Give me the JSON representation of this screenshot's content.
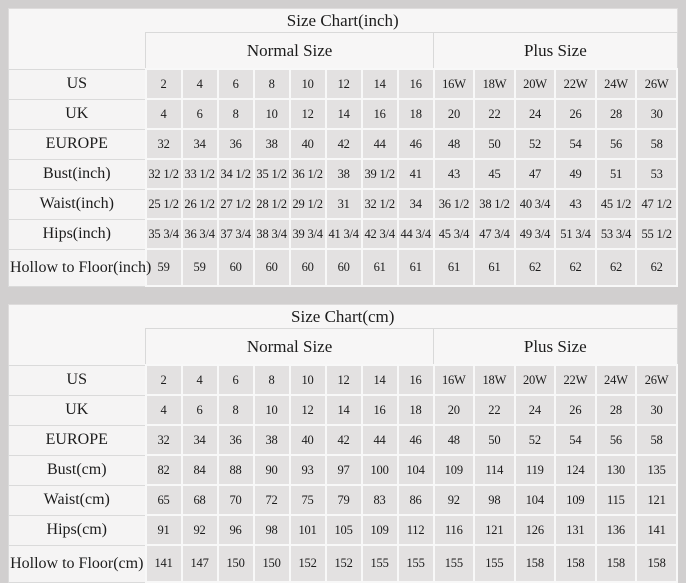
{
  "colors": {
    "page_bg": "#d1cfcf",
    "header_bg": "#f7f6f6",
    "label_cell_bg": "#f5f4f4",
    "data_cell_bg": "#e3e1e1",
    "grid_light": "#f8f8f8",
    "grid_gray": "#d9d9d9",
    "text": "#1c1c1c"
  },
  "tables": [
    {
      "title": "Size Chart(inch)",
      "group_headers": {
        "normal": "Normal Size",
        "plus": "Plus Size"
      },
      "rows": [
        {
          "label": "US",
          "normal": [
            "2",
            "4",
            "6",
            "8",
            "10",
            "12",
            "14",
            "16"
          ],
          "plus": [
            "16W",
            "18W",
            "20W",
            "22W",
            "24W",
            "26W"
          ]
        },
        {
          "label": "UK",
          "normal": [
            "4",
            "6",
            "8",
            "10",
            "12",
            "14",
            "16",
            "18"
          ],
          "plus": [
            "20",
            "22",
            "24",
            "26",
            "28",
            "30"
          ]
        },
        {
          "label": "EUROPE",
          "normal": [
            "32",
            "34",
            "36",
            "38",
            "40",
            "42",
            "44",
            "46"
          ],
          "plus": [
            "48",
            "50",
            "52",
            "54",
            "56",
            "58"
          ]
        },
        {
          "label": "Bust(inch)",
          "normal": [
            "32 1/2",
            "33 1/2",
            "34 1/2",
            "35 1/2",
            "36 1/2",
            "38",
            "39 1/2",
            "41"
          ],
          "plus": [
            "43",
            "45",
            "47",
            "49",
            "51",
            "53"
          ]
        },
        {
          "label": "Waist(inch)",
          "normal": [
            "25 1/2",
            "26 1/2",
            "27 1/2",
            "28 1/2",
            "29 1/2",
            "31",
            "32 1/2",
            "34"
          ],
          "plus": [
            "36 1/2",
            "38 1/2",
            "40 3/4",
            "43",
            "45 1/2",
            "47 1/2"
          ]
        },
        {
          "label": "Hips(inch)",
          "normal": [
            "35 3/4",
            "36 3/4",
            "37 3/4",
            "38 3/4",
            "39 3/4",
            "41 3/4",
            "42 3/4",
            "44 3/4"
          ],
          "plus": [
            "45 3/4",
            "47 3/4",
            "49 3/4",
            "51 3/4",
            "53 3/4",
            "55 1/2"
          ]
        },
        {
          "label": "Hollow to Floor(inch)",
          "normal": [
            "59",
            "59",
            "60",
            "60",
            "60",
            "60",
            "61",
            "61"
          ],
          "plus": [
            "61",
            "61",
            "62",
            "62",
            "62",
            "62"
          ]
        }
      ]
    },
    {
      "title": "Size Chart(cm)",
      "group_headers": {
        "normal": "Normal Size",
        "plus": "Plus Size"
      },
      "rows": [
        {
          "label": "US",
          "normal": [
            "2",
            "4",
            "6",
            "8",
            "10",
            "12",
            "14",
            "16"
          ],
          "plus": [
            "16W",
            "18W",
            "20W",
            "22W",
            "24W",
            "26W"
          ]
        },
        {
          "label": "UK",
          "normal": [
            "4",
            "6",
            "8",
            "10",
            "12",
            "14",
            "16",
            "18"
          ],
          "plus": [
            "20",
            "22",
            "24",
            "26",
            "28",
            "30"
          ]
        },
        {
          "label": "EUROPE",
          "normal": [
            "32",
            "34",
            "36",
            "38",
            "40",
            "42",
            "44",
            "46"
          ],
          "plus": [
            "48",
            "50",
            "52",
            "54",
            "56",
            "58"
          ]
        },
        {
          "label": "Bust(cm)",
          "normal": [
            "82",
            "84",
            "88",
            "90",
            "93",
            "97",
            "100",
            "104"
          ],
          "plus": [
            "109",
            "114",
            "119",
            "124",
            "130",
            "135"
          ]
        },
        {
          "label": "Waist(cm)",
          "normal": [
            "65",
            "68",
            "70",
            "72",
            "75",
            "79",
            "83",
            "86"
          ],
          "plus": [
            "92",
            "98",
            "104",
            "109",
            "115",
            "121"
          ]
        },
        {
          "label": "Hips(cm)",
          "normal": [
            "91",
            "92",
            "96",
            "98",
            "101",
            "105",
            "109",
            "112"
          ],
          "plus": [
            "116",
            "121",
            "126",
            "131",
            "136",
            "141"
          ]
        },
        {
          "label": "Hollow to Floor(cm)",
          "normal": [
            "141",
            "147",
            "150",
            "150",
            "152",
            "152",
            "155",
            "155"
          ],
          "plus": [
            "155",
            "155",
            "158",
            "158",
            "158",
            "158"
          ]
        }
      ]
    }
  ]
}
